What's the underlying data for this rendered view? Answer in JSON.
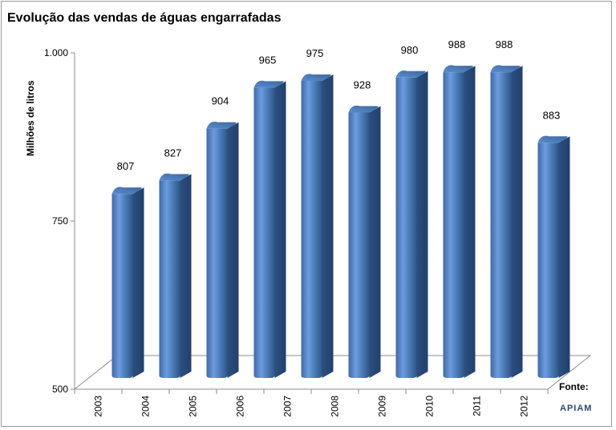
{
  "chart_data": {
    "type": "bar",
    "title": "Evolução das vendas de águas engarrafadas",
    "ylabel": "Milhões de litros",
    "xlabel": "",
    "categories": [
      "2003",
      "2004",
      "2005",
      "2006",
      "2007",
      "2008",
      "2009",
      "2010",
      "2011",
      "2012"
    ],
    "values": [
      807,
      827,
      904,
      965,
      975,
      928,
      980,
      988,
      988,
      883
    ],
    "data_labels": [
      "807",
      "827",
      "904",
      "965",
      "975",
      "928",
      "980",
      "988",
      "988",
      "883"
    ],
    "ylim": [
      500,
      1000
    ],
    "yticks": [
      500,
      750,
      1000
    ],
    "ytick_labels": [
      "500",
      "750",
      "1.000"
    ],
    "grid": false,
    "bar_color": "#4f81bd",
    "style": "3d-cylinder"
  },
  "source": {
    "label": "Fonte:",
    "logo_text": "APIAM"
  }
}
